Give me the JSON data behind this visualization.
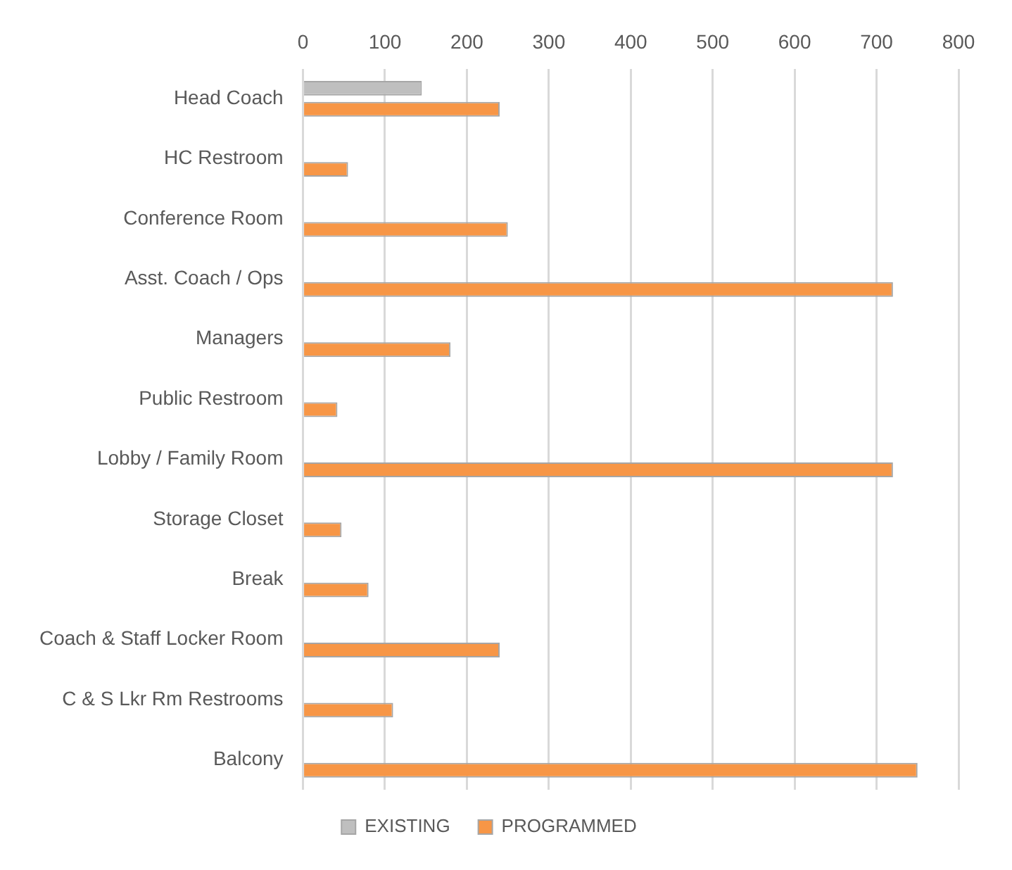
{
  "chart_data": {
    "type": "bar",
    "orientation": "horizontal",
    "categories": [
      "Head Coach",
      "HC Restroom",
      "Conference Room",
      "Asst. Coach / Ops",
      "Managers",
      "Public Restroom",
      "Lobby / Family Room",
      "Storage Closet",
      "Break",
      "Coach & Staff Locker Room",
      "C & S Lkr Rm Restrooms",
      "Balcony"
    ],
    "series": [
      {
        "name": "EXISTING",
        "color": "#bfbfbf",
        "values": [
          145,
          null,
          null,
          null,
          null,
          null,
          null,
          null,
          null,
          null,
          null,
          null
        ]
      },
      {
        "name": "PROGRAMMED",
        "color": "#f79646",
        "values": [
          240,
          55,
          250,
          720,
          180,
          42,
          720,
          47,
          80,
          240,
          110,
          750
        ]
      }
    ],
    "xlim": [
      0,
      800
    ],
    "xticks": [
      0,
      100,
      200,
      300,
      400,
      500,
      600,
      700,
      800
    ],
    "grid": "x",
    "legend": "bottom"
  }
}
